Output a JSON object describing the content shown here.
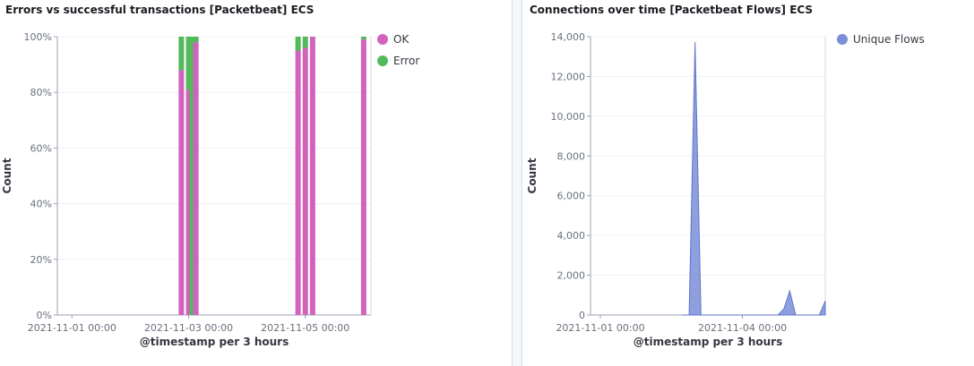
{
  "panels": [
    {
      "title": "Errors vs successful transactions [Packetbeat] ECS"
    },
    {
      "title": "Connections over time [Packetbeat Flows] ECS"
    }
  ],
  "colors": {
    "ok": "#d163be",
    "error": "#54b95a",
    "flows": "#7b8ed8",
    "axis": "#98a2b3",
    "grid": "#eef0f4",
    "text": "#69707d"
  },
  "chart_data": [
    {
      "type": "bar",
      "stacked": true,
      "percent": true,
      "xlabel": "@timestamp per 3 hours",
      "ylabel": "Count",
      "x_range": [
        "2021-10-31T18:00",
        "2021-11-06T03:00"
      ],
      "ylim": [
        0,
        100
      ],
      "y_ticks": [
        "0%",
        "20%",
        "40%",
        "60%",
        "80%",
        "100%"
      ],
      "x_ticks": [
        {
          "label": "2021-11-01 00:00",
          "t": "2021-11-01T00:00"
        },
        {
          "label": "2021-11-03 00:00",
          "t": "2021-11-03T00:00"
        },
        {
          "label": "2021-11-05 00:00",
          "t": "2021-11-05T00:00"
        }
      ],
      "legend": {
        "position": "top-right",
        "entries": [
          "OK",
          "Error"
        ]
      },
      "bars": [
        {
          "t": "2021-11-02T21:00",
          "ok": 88,
          "error": 12
        },
        {
          "t": "2021-11-03T00:00",
          "ok": 81,
          "error": 19
        },
        {
          "t": "2021-11-03T01:30",
          "ok": 0,
          "error": 100
        },
        {
          "t": "2021-11-03T03:00",
          "ok": 98,
          "error": 2
        },
        {
          "t": "2021-11-04T21:00",
          "ok": 95,
          "error": 5
        },
        {
          "t": "2021-11-05T00:00",
          "ok": 96,
          "error": 4
        },
        {
          "t": "2021-11-05T03:00",
          "ok": 100,
          "error": 0
        },
        {
          "t": "2021-11-06T00:00",
          "ok": 99,
          "error": 1
        }
      ]
    },
    {
      "type": "area",
      "xlabel": "@timestamp per 3 hours",
      "ylabel": "Count",
      "x_range": [
        "2021-10-31T19:00",
        "2021-11-05T18:00"
      ],
      "ylim": [
        0,
        14000
      ],
      "y_ticks": [
        "0",
        "2,000",
        "4,000",
        "6,000",
        "8,000",
        "10,000",
        "12,000",
        "14,000"
      ],
      "x_ticks": [
        {
          "label": "2021-11-01 00:00",
          "t": "2021-11-01T00:00"
        },
        {
          "label": "2021-11-04 00:00",
          "t": "2021-11-04T00:00"
        }
      ],
      "legend": {
        "position": "top-right",
        "entries": [
          "Unique Flows"
        ]
      },
      "series": [
        {
          "name": "Unique Flows",
          "points": [
            {
              "t": "2021-11-02T18:00",
              "y": 0
            },
            {
              "t": "2021-11-02T21:00",
              "y": 0
            },
            {
              "t": "2021-11-03T00:00",
              "y": 13700
            },
            {
              "t": "2021-11-03T03:00",
              "y": 0
            },
            {
              "t": "2021-11-03T21:00",
              "y": 0
            },
            {
              "t": "2021-11-04T00:00",
              "y": 0
            },
            {
              "t": "2021-11-04T09:00",
              "y": 0
            },
            {
              "t": "2021-11-04T18:00",
              "y": 0
            },
            {
              "t": "2021-11-04T21:00",
              "y": 300
            },
            {
              "t": "2021-11-05T00:00",
              "y": 1200
            },
            {
              "t": "2021-11-05T03:00",
              "y": 0
            },
            {
              "t": "2021-11-05T09:00",
              "y": 0
            },
            {
              "t": "2021-11-05T15:00",
              "y": 0
            },
            {
              "t": "2021-11-05T18:00",
              "y": 700
            }
          ]
        }
      ]
    }
  ]
}
